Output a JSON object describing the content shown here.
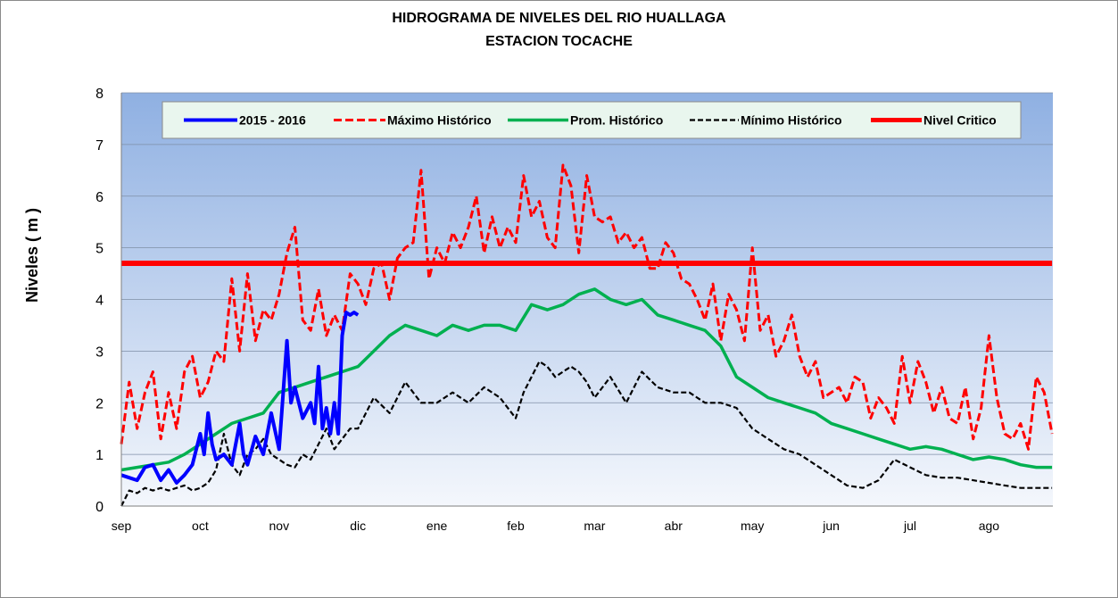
{
  "chart_data": {
    "type": "line",
    "title": "HIDROGRAMA DE NIVELES  DEL RIO HUALLAGA",
    "subtitle": "ESTACION TOCACHE",
    "ylabel": "Niveles ( m )",
    "xlabel": "",
    "ylim": [
      0,
      8
    ],
    "yticks": [
      "0",
      "1",
      "2",
      "3",
      "4",
      "5",
      "6",
      "7",
      "8"
    ],
    "months": [
      "sep",
      "oct",
      "nov",
      "dic",
      "ene",
      "feb",
      "mar",
      "abr",
      "may",
      "jun",
      "jul",
      "ago"
    ],
    "x_unit": "month (0 = start of sep)",
    "xlim": [
      0,
      11.8
    ],
    "grid": true,
    "legend_position": "top",
    "series": [
      {
        "name": "2015 - 2016",
        "color": "#0000ff",
        "style": "solid",
        "x": [
          0,
          0.1,
          0.2,
          0.3,
          0.4,
          0.5,
          0.6,
          0.7,
          0.8,
          0.9,
          1.0,
          1.05,
          1.1,
          1.15,
          1.2,
          1.3,
          1.4,
          1.5,
          1.55,
          1.6,
          1.7,
          1.8,
          1.9,
          2.0,
          2.1,
          2.15,
          2.2,
          2.3,
          2.4,
          2.45,
          2.5,
          2.55,
          2.6,
          2.65,
          2.7,
          2.75,
          2.8,
          2.85,
          2.9,
          2.95,
          3.0
        ],
        "values": [
          0.6,
          0.55,
          0.5,
          0.75,
          0.8,
          0.5,
          0.7,
          0.45,
          0.6,
          0.8,
          1.4,
          1.0,
          1.8,
          1.2,
          0.9,
          1.0,
          0.8,
          1.6,
          1.0,
          0.8,
          1.35,
          1.0,
          1.8,
          1.1,
          3.2,
          2.0,
          2.3,
          1.7,
          2.0,
          1.6,
          2.7,
          1.5,
          1.9,
          1.4,
          2.0,
          1.4,
          3.3,
          3.75,
          3.7,
          3.75,
          3.7
        ]
      },
      {
        "name": "Máximo Histórico",
        "color": "#ff0000",
        "style": "dashed",
        "x": [
          0,
          0.1,
          0.2,
          0.3,
          0.4,
          0.5,
          0.6,
          0.7,
          0.8,
          0.9,
          1.0,
          1.1,
          1.2,
          1.3,
          1.4,
          1.5,
          1.6,
          1.7,
          1.8,
          1.9,
          2.0,
          2.1,
          2.2,
          2.3,
          2.4,
          2.5,
          2.6,
          2.7,
          2.8,
          2.9,
          3.0,
          3.1,
          3.2,
          3.3,
          3.4,
          3.5,
          3.6,
          3.7,
          3.8,
          3.9,
          4.0,
          4.1,
          4.2,
          4.3,
          4.4,
          4.5,
          4.6,
          4.7,
          4.8,
          4.9,
          5.0,
          5.1,
          5.2,
          5.3,
          5.4,
          5.5,
          5.6,
          5.7,
          5.8,
          5.9,
          6.0,
          6.1,
          6.2,
          6.3,
          6.4,
          6.5,
          6.6,
          6.7,
          6.8,
          6.9,
          7.0,
          7.1,
          7.2,
          7.3,
          7.4,
          7.5,
          7.6,
          7.7,
          7.8,
          7.9,
          8.0,
          8.1,
          8.2,
          8.3,
          8.4,
          8.5,
          8.6,
          8.7,
          8.8,
          8.9,
          9.0,
          9.1,
          9.2,
          9.3,
          9.4,
          9.5,
          9.6,
          9.7,
          9.8,
          9.9,
          10.0,
          10.1,
          10.2,
          10.3,
          10.4,
          10.5,
          10.6,
          10.7,
          10.8,
          10.9,
          11.0,
          11.1,
          11.2,
          11.3,
          11.4,
          11.5,
          11.6,
          11.7,
          11.8
        ],
        "values": [
          1.2,
          2.4,
          1.5,
          2.2,
          2.6,
          1.3,
          2.2,
          1.5,
          2.6,
          2.9,
          2.1,
          2.4,
          3.0,
          2.8,
          4.4,
          3.0,
          4.5,
          3.2,
          3.8,
          3.6,
          4.1,
          4.9,
          5.4,
          3.6,
          3.4,
          4.2,
          3.3,
          3.7,
          3.4,
          4.5,
          4.3,
          3.9,
          4.6,
          4.7,
          4.0,
          4.8,
          5.0,
          5.1,
          6.5,
          4.4,
          5.0,
          4.7,
          5.3,
          5.0,
          5.4,
          6.0,
          4.9,
          5.6,
          5.0,
          5.4,
          5.1,
          6.4,
          5.6,
          5.9,
          5.2,
          5.0,
          6.6,
          6.2,
          4.9,
          6.4,
          5.6,
          5.5,
          5.6,
          5.1,
          5.3,
          5.0,
          5.2,
          4.6,
          4.6,
          5.1,
          4.9,
          4.4,
          4.3,
          4.0,
          3.6,
          4.3,
          3.2,
          4.1,
          3.8,
          3.2,
          5.0,
          3.4,
          3.7,
          2.9,
          3.2,
          3.7,
          2.9,
          2.5,
          2.8,
          2.1,
          2.2,
          2.3,
          2.0,
          2.5,
          2.4,
          1.7,
          2.1,
          1.9,
          1.6,
          2.9,
          2.0,
          2.8,
          2.4,
          1.8,
          2.3,
          1.7,
          1.6,
          2.3,
          1.3,
          1.9,
          3.3,
          2.1,
          1.4,
          1.3,
          1.6,
          1.1,
          2.5,
          2.2,
          1.4
        ]
      },
      {
        "name": "Prom. Histórico",
        "color": "#00b050",
        "style": "solid",
        "x": [
          0,
          0.2,
          0.4,
          0.6,
          0.8,
          1.0,
          1.2,
          1.4,
          1.6,
          1.8,
          2.0,
          2.2,
          2.4,
          2.6,
          2.8,
          3.0,
          3.2,
          3.4,
          3.6,
          3.8,
          4.0,
          4.2,
          4.4,
          4.6,
          4.8,
          5.0,
          5.2,
          5.4,
          5.6,
          5.8,
          6.0,
          6.2,
          6.4,
          6.6,
          6.8,
          7.0,
          7.2,
          7.4,
          7.6,
          7.8,
          8.0,
          8.2,
          8.4,
          8.6,
          8.8,
          9.0,
          9.2,
          9.4,
          9.6,
          9.8,
          10.0,
          10.2,
          10.4,
          10.6,
          10.8,
          11.0,
          11.2,
          11.4,
          11.6,
          11.8
        ],
        "values": [
          0.7,
          0.75,
          0.8,
          0.85,
          1.0,
          1.2,
          1.4,
          1.6,
          1.7,
          1.8,
          2.2,
          2.3,
          2.4,
          2.5,
          2.6,
          2.7,
          3.0,
          3.3,
          3.5,
          3.4,
          3.3,
          3.5,
          3.4,
          3.5,
          3.5,
          3.4,
          3.9,
          3.8,
          3.9,
          4.1,
          4.2,
          4.0,
          3.9,
          4.0,
          3.7,
          3.6,
          3.5,
          3.4,
          3.1,
          2.5,
          2.3,
          2.1,
          2.0,
          1.9,
          1.8,
          1.6,
          1.5,
          1.4,
          1.3,
          1.2,
          1.1,
          1.15,
          1.1,
          1.0,
          0.9,
          0.95,
          0.9,
          0.8,
          0.75,
          0.75
        ]
      },
      {
        "name": "Mínimo Histórico",
        "color": "#000000",
        "style": "dashed",
        "x": [
          0,
          0.1,
          0.2,
          0.3,
          0.4,
          0.5,
          0.6,
          0.7,
          0.8,
          0.9,
          1.0,
          1.1,
          1.2,
          1.3,
          1.4,
          1.5,
          1.6,
          1.7,
          1.8,
          1.9,
          2.0,
          2.1,
          2.2,
          2.3,
          2.4,
          2.5,
          2.6,
          2.7,
          2.8,
          2.9,
          3.0,
          3.2,
          3.4,
          3.6,
          3.8,
          4.0,
          4.2,
          4.4,
          4.6,
          4.8,
          5.0,
          5.1,
          5.2,
          5.3,
          5.4,
          5.5,
          5.6,
          5.7,
          5.8,
          5.9,
          6.0,
          6.2,
          6.4,
          6.6,
          6.8,
          7.0,
          7.2,
          7.4,
          7.6,
          7.8,
          8.0,
          8.2,
          8.4,
          8.6,
          8.8,
          9.0,
          9.2,
          9.4,
          9.6,
          9.8,
          10.0,
          10.2,
          10.4,
          10.6,
          10.8,
          11.0,
          11.2,
          11.4,
          11.6,
          11.8
        ],
        "values": [
          0.0,
          0.3,
          0.25,
          0.35,
          0.3,
          0.35,
          0.3,
          0.35,
          0.4,
          0.3,
          0.35,
          0.45,
          0.7,
          1.4,
          0.8,
          0.6,
          1.0,
          1.1,
          1.3,
          1.0,
          0.9,
          0.8,
          0.75,
          1.0,
          0.9,
          1.2,
          1.5,
          1.1,
          1.3,
          1.5,
          1.5,
          2.1,
          1.8,
          2.4,
          2.0,
          2.0,
          2.2,
          2.0,
          2.3,
          2.1,
          1.7,
          2.2,
          2.5,
          2.8,
          2.7,
          2.5,
          2.6,
          2.7,
          2.6,
          2.4,
          2.1,
          2.5,
          2.0,
          2.6,
          2.3,
          2.2,
          2.2,
          2.0,
          2.0,
          1.9,
          1.5,
          1.3,
          1.1,
          1.0,
          0.8,
          0.6,
          0.4,
          0.35,
          0.5,
          0.9,
          0.75,
          0.6,
          0.55,
          0.55,
          0.5,
          0.45,
          0.4,
          0.35,
          0.35,
          0.35
        ]
      },
      {
        "name": "Nivel Critico",
        "color": "#ff0000",
        "style": "solid-thick",
        "x": [
          0,
          11.8
        ],
        "values": [
          4.7,
          4.7
        ]
      }
    ]
  }
}
